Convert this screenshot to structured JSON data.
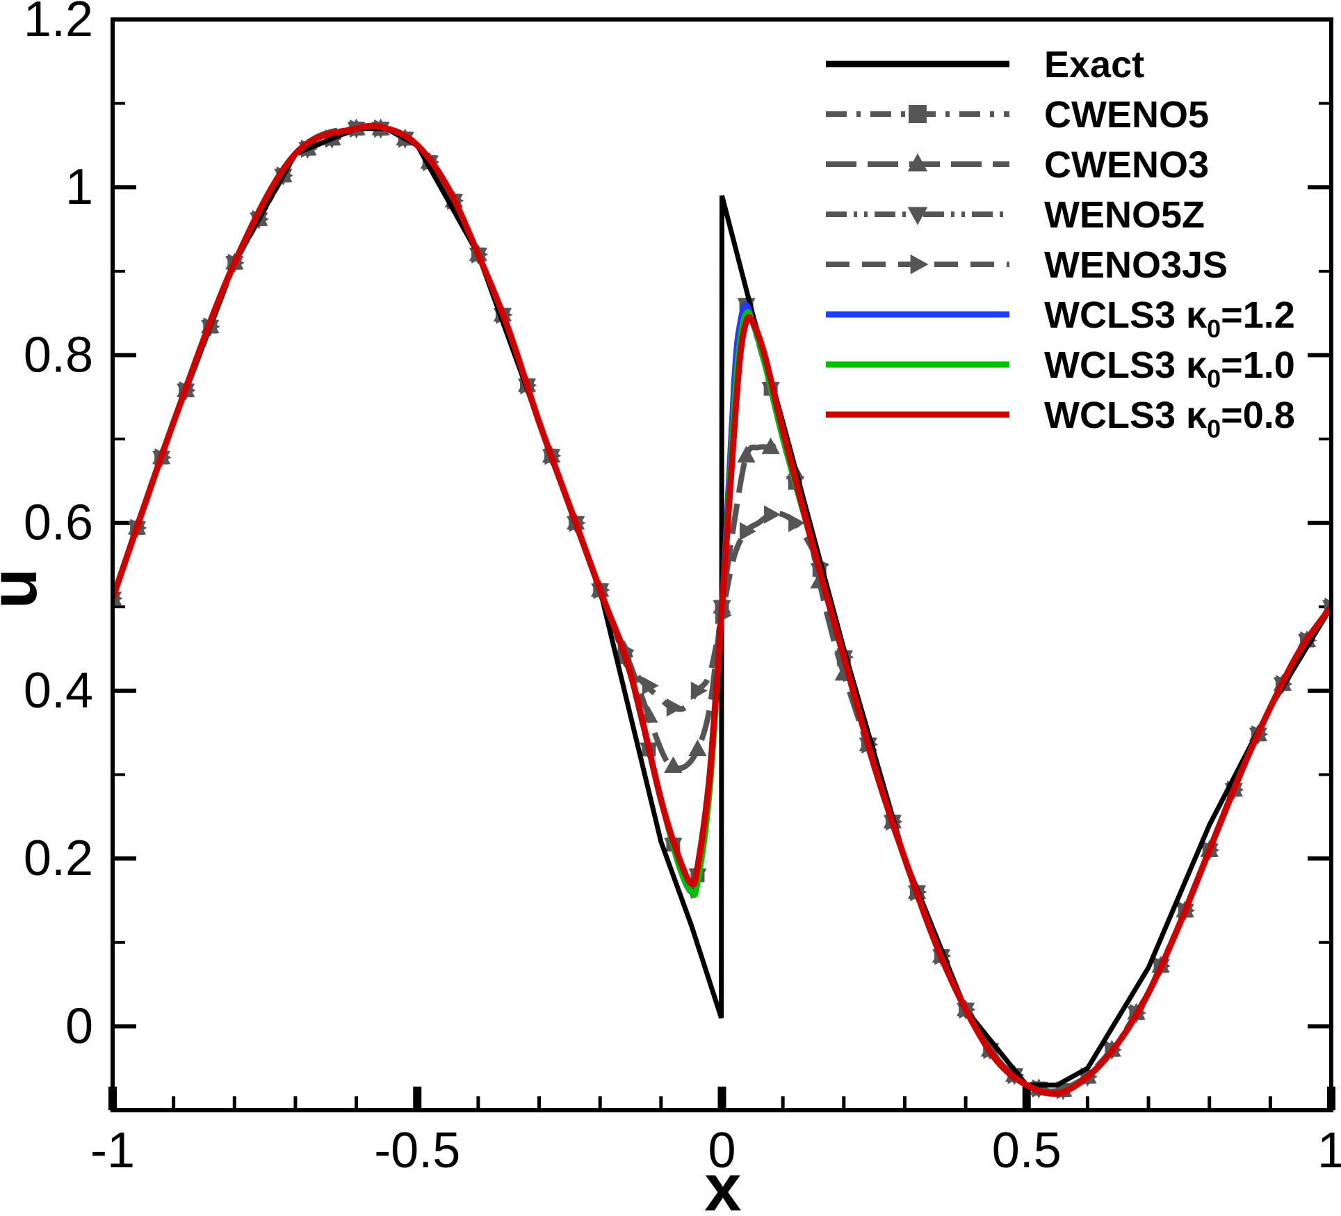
{
  "chart_data": {
    "type": "line",
    "title": "",
    "xlabel": "x",
    "ylabel": "u",
    "xlim": [
      -1,
      1
    ],
    "ylim": [
      -0.1,
      1.2
    ],
    "x_ticks": [
      -1,
      -0.5,
      0,
      0.5,
      1
    ],
    "x_tick_labels": [
      "-1",
      "-0.5",
      "0",
      "0.5",
      "1"
    ],
    "y_ticks": [
      0,
      0.2,
      0.4,
      0.6,
      0.8,
      1,
      1.2
    ],
    "y_tick_labels": [
      "0",
      "0.2",
      "0.4",
      "0.6",
      "0.8",
      "1",
      "1.2"
    ],
    "legend_position": "top-right",
    "colors": {
      "exact": "#000000",
      "reference": "#555555",
      "wcls3_12": "#1f3cff",
      "wcls3_10": "#00c000",
      "wcls3_08": "#d00000"
    },
    "series": [
      {
        "name": "Exact",
        "label": "Exact",
        "style": "solid",
        "marker": "none"
      },
      {
        "name": "CWENO5",
        "label": "CWENO5",
        "style": "dashdot",
        "marker": "square"
      },
      {
        "name": "CWENO3",
        "label": "CWENO3",
        "style": "longdash",
        "marker": "triangle-up"
      },
      {
        "name": "WENO5Z",
        "label": "WENO5Z",
        "style": "dashdotdot",
        "marker": "triangle-down"
      },
      {
        "name": "WENO3JS",
        "label": "WENO3JS",
        "style": "dashed",
        "marker": "triangle-right"
      },
      {
        "name": "WCLS3 κ0=1.2",
        "label_main": "WCLS3 κ",
        "label_sub": "0",
        "label_value": "=1.2",
        "style": "solid",
        "marker": "none"
      },
      {
        "name": "WCLS3 κ0=1.0",
        "label_main": "WCLS3 κ",
        "label_sub": "0",
        "label_value": "=1.0",
        "style": "solid",
        "marker": "none"
      },
      {
        "name": "WCLS3 κ0=0.8",
        "label_main": "WCLS3 κ",
        "label_sub": "0",
        "label_value": "=0.8",
        "style": "solid",
        "marker": "none"
      }
    ],
    "exact": {
      "x": [
        -1.0,
        -0.9,
        -0.8,
        -0.7,
        -0.6,
        -0.55,
        -0.5,
        -0.4,
        -0.3,
        -0.2,
        -0.1,
        -0.05,
        -0.001,
        0.0,
        0.05,
        0.1,
        0.2,
        0.3,
        0.4,
        0.5,
        0.55,
        0.6,
        0.7,
        0.8,
        0.9,
        1.0
      ],
      "u": [
        0.51,
        0.72,
        0.91,
        1.04,
        1.07,
        1.07,
        1.05,
        0.92,
        0.72,
        0.52,
        0.22,
        0.12,
        0.01,
        0.99,
        0.85,
        0.72,
        0.45,
        0.2,
        0.02,
        -0.07,
        -0.07,
        -0.05,
        0.07,
        0.24,
        0.38,
        0.5
      ]
    },
    "wcls3": {
      "x": [
        -1.0,
        -0.9,
        -0.8,
        -0.7,
        -0.6,
        -0.55,
        -0.5,
        -0.45,
        -0.4,
        -0.35,
        -0.3,
        -0.25,
        -0.2,
        -0.15,
        -0.1,
        -0.07,
        -0.05,
        -0.04,
        -0.02,
        0.0,
        0.02,
        0.03,
        0.04,
        0.05,
        0.07,
        0.1,
        0.15,
        0.2,
        0.25,
        0.3,
        0.35,
        0.4,
        0.45,
        0.5,
        0.55,
        0.6,
        0.65,
        0.7,
        0.75,
        0.8,
        0.85,
        0.9,
        0.95,
        1.0
      ],
      "u_k12": [
        0.51,
        0.72,
        0.91,
        1.04,
        1.07,
        1.07,
        1.05,
        1.0,
        0.92,
        0.83,
        0.72,
        0.62,
        0.52,
        0.42,
        0.27,
        0.19,
        0.16,
        0.18,
        0.3,
        0.5,
        0.77,
        0.84,
        0.86,
        0.84,
        0.79,
        0.7,
        0.57,
        0.44,
        0.31,
        0.2,
        0.1,
        0.02,
        -0.04,
        -0.07,
        -0.08,
        -0.06,
        -0.02,
        0.04,
        0.12,
        0.21,
        0.3,
        0.38,
        0.45,
        0.5
      ],
      "u_k10": [
        0.51,
        0.72,
        0.91,
        1.04,
        1.07,
        1.07,
        1.05,
        1.0,
        0.92,
        0.83,
        0.72,
        0.62,
        0.52,
        0.42,
        0.27,
        0.19,
        0.16,
        0.17,
        0.28,
        0.5,
        0.74,
        0.82,
        0.85,
        0.84,
        0.79,
        0.7,
        0.57,
        0.44,
        0.31,
        0.2,
        0.1,
        0.02,
        -0.04,
        -0.07,
        -0.08,
        -0.06,
        -0.02,
        0.04,
        0.12,
        0.21,
        0.3,
        0.38,
        0.45,
        0.5
      ],
      "u_k08": [
        0.51,
        0.72,
        0.91,
        1.04,
        1.07,
        1.07,
        1.05,
        1.0,
        0.92,
        0.83,
        0.72,
        0.62,
        0.52,
        0.42,
        0.27,
        0.2,
        0.17,
        0.19,
        0.3,
        0.5,
        0.71,
        0.8,
        0.84,
        0.84,
        0.8,
        0.71,
        0.57,
        0.44,
        0.31,
        0.2,
        0.1,
        0.02,
        -0.04,
        -0.07,
        -0.08,
        -0.06,
        -0.02,
        0.04,
        0.12,
        0.21,
        0.3,
        0.38,
        0.45,
        0.5
      ]
    },
    "cweno3": {
      "x": [
        -0.2,
        -0.15,
        -0.1,
        -0.08,
        -0.06,
        -0.04,
        -0.02,
        0.0,
        0.02,
        0.04,
        0.06,
        0.08,
        0.1,
        0.12,
        0.14,
        0.16,
        0.18,
        0.2
      ],
      "u": [
        0.52,
        0.43,
        0.33,
        0.31,
        0.31,
        0.33,
        0.38,
        0.5,
        0.6,
        0.68,
        0.69,
        0.69,
        0.69,
        0.66,
        0.6,
        0.53,
        0.47,
        0.42
      ]
    },
    "weno3js": {
      "x": [
        -0.25,
        -0.2,
        -0.15,
        -0.1,
        -0.08,
        -0.06,
        -0.04,
        -0.02,
        0.0,
        0.02,
        0.04,
        0.06,
        0.08,
        0.1,
        0.12,
        0.14,
        0.16,
        0.18,
        0.2,
        0.25
      ],
      "u": [
        0.62,
        0.52,
        0.43,
        0.39,
        0.38,
        0.38,
        0.4,
        0.42,
        0.49,
        0.56,
        0.59,
        0.6,
        0.61,
        0.61,
        0.6,
        0.58,
        0.55,
        0.5,
        0.44,
        0.31
      ]
    }
  }
}
